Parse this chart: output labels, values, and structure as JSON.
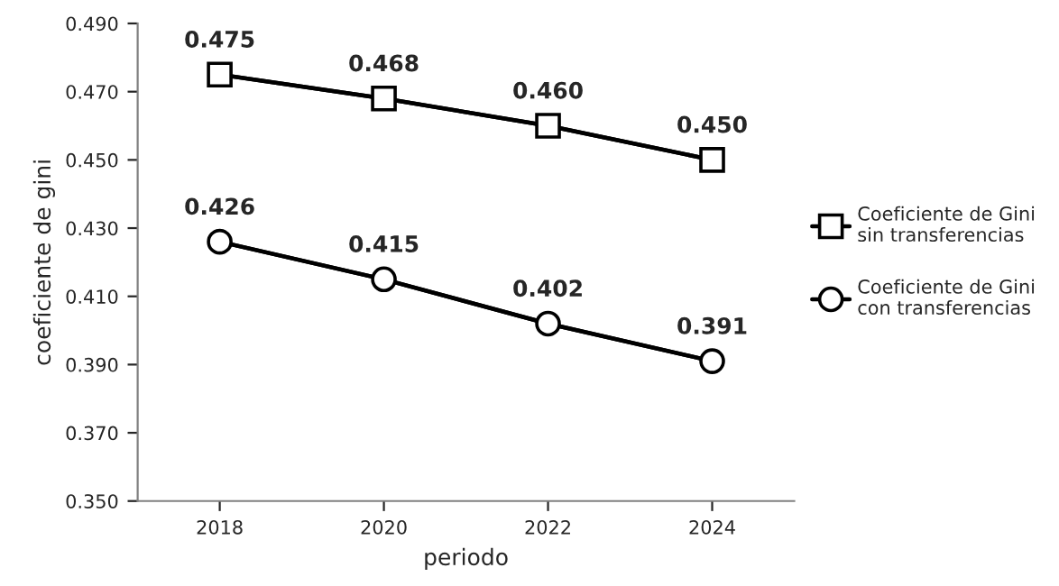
{
  "chart_data": {
    "type": "line",
    "xlabel": "periodo",
    "ylabel": "coeficiente de gini",
    "categories": [
      "2018",
      "2020",
      "2022",
      "2024"
    ],
    "series": [
      {
        "name": "Coeficiente de Gini\nsin transferencias",
        "color": "#000000",
        "marker": "square",
        "values": [
          0.475,
          0.468,
          0.46,
          0.45
        ],
        "value_labels": [
          "0.475",
          "0.468",
          "0.460",
          "0.450"
        ]
      },
      {
        "name": "Coeficiente de Gini\ncon transferencias",
        "color": "#000000",
        "marker": "circle",
        "values": [
          0.426,
          0.415,
          0.402,
          0.391
        ],
        "value_labels": [
          "0.426",
          "0.415",
          "0.402",
          "0.391"
        ]
      }
    ],
    "ylim": [
      0.35,
      0.49
    ],
    "yticks": [
      {
        "value": 0.35,
        "label": "0.350"
      },
      {
        "value": 0.37,
        "label": "0.370"
      },
      {
        "value": 0.39,
        "label": "0.390"
      },
      {
        "value": 0.41,
        "label": "0.410"
      },
      {
        "value": 0.43,
        "label": "0.430"
      },
      {
        "value": 0.45,
        "label": "0.450"
      },
      {
        "value": 0.47,
        "label": "0.470"
      },
      {
        "value": 0.49,
        "label": "0.490"
      }
    ],
    "grid": false,
    "legend": "right",
    "line_style": "solid"
  }
}
